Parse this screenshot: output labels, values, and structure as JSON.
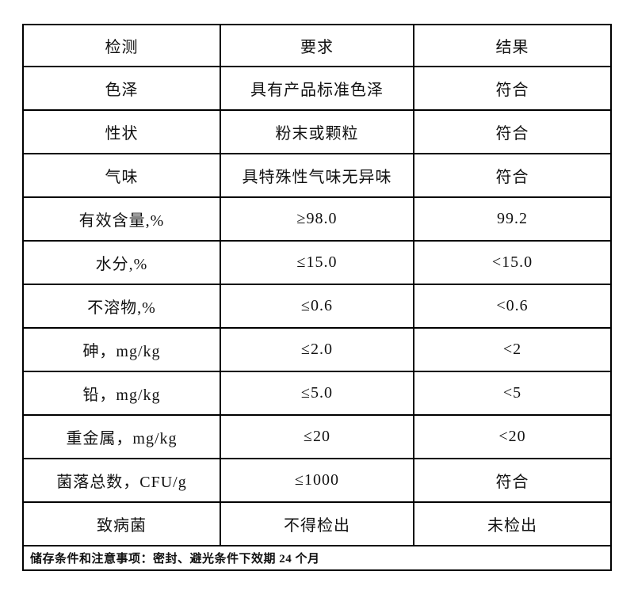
{
  "page": {
    "background_color": "#ffffff",
    "border_color": "#000000",
    "text_color": "#111111"
  },
  "table": {
    "header": {
      "test": "检测",
      "requirement": "要求",
      "result": "结果"
    },
    "rows": [
      {
        "test": "色泽",
        "requirement": "具有产品标准色泽",
        "result": "符合"
      },
      {
        "test": "性状",
        "requirement": "粉末或颗粒",
        "result": "符合"
      },
      {
        "test": "气味",
        "requirement": "具特殊性气味无异味",
        "result": "符合"
      },
      {
        "test": "有效含量,%",
        "requirement": "≥98.0",
        "result": "99.2"
      },
      {
        "test": "水分,%",
        "requirement": "≤15.0",
        "result": "<15.0"
      },
      {
        "test": "不溶物,%",
        "requirement": "≤0.6",
        "result": "<0.6"
      },
      {
        "test": "砷，mg/kg",
        "requirement": "≤2.0",
        "result": "<2"
      },
      {
        "test": "铅，mg/kg",
        "requirement": "≤5.0",
        "result": "<5"
      },
      {
        "test": "重金属，mg/kg",
        "requirement": "≤20",
        "result": "<20"
      },
      {
        "test": "菌落总数，CFU/g",
        "requirement": "≤1000",
        "result": "符合"
      },
      {
        "test": "致病菌",
        "requirement": "不得检出",
        "result": "未检出"
      }
    ],
    "footer_note": "储存条件和注意事项：密封、避光条件下效期 24 个月"
  }
}
